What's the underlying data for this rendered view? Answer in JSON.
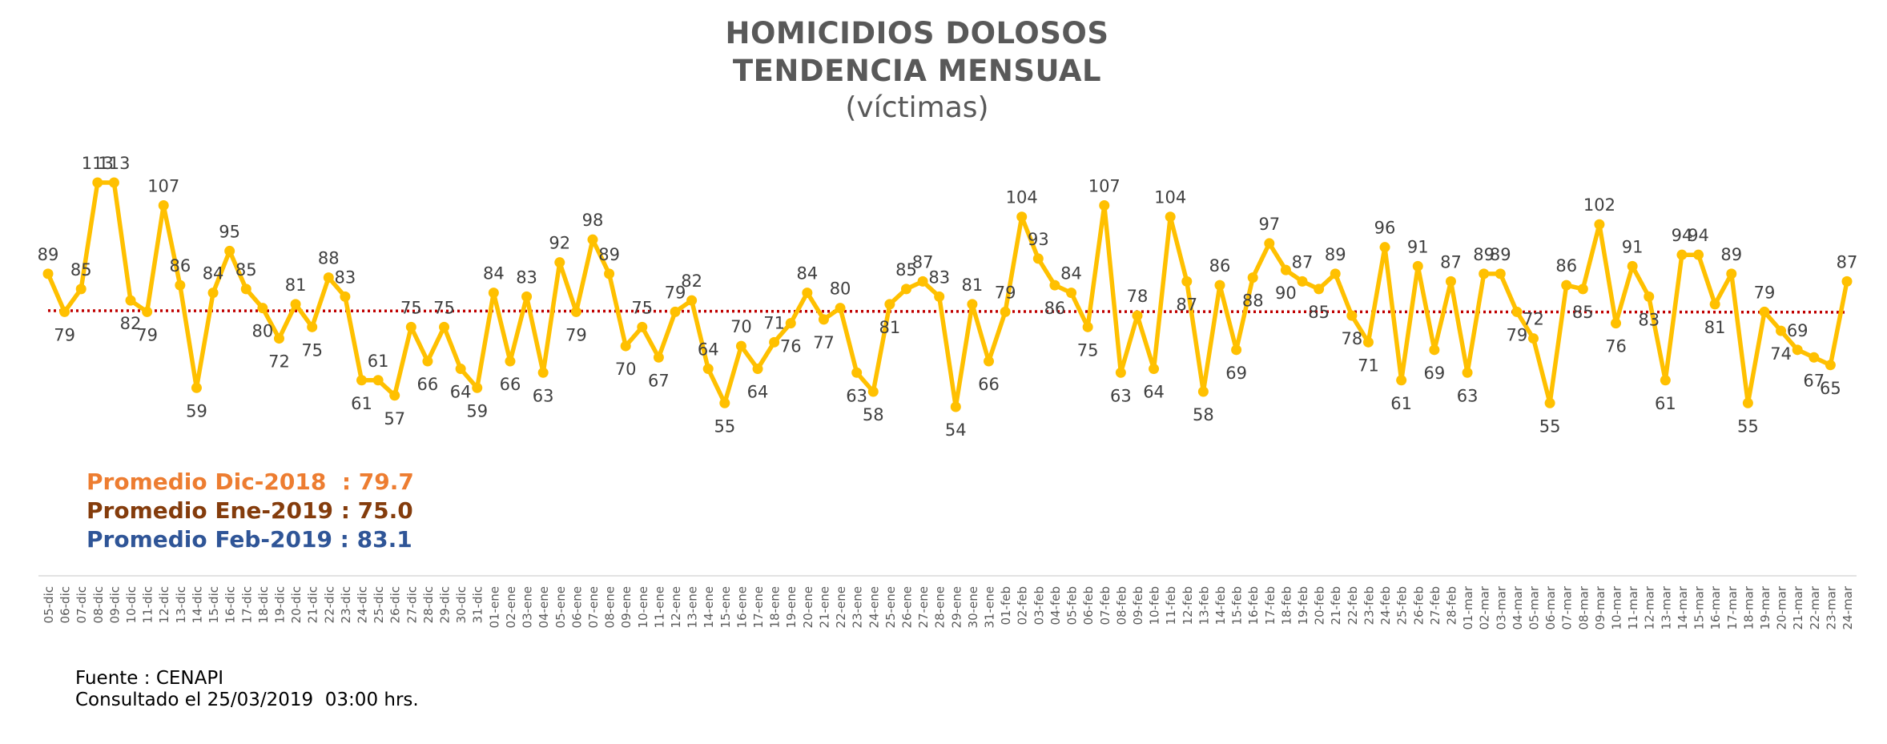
{
  "title": {
    "line1": "HOMICIDIOS DOLOSOS",
    "line2": "TENDENCIA MENSUAL",
    "line3": "(víctimas)"
  },
  "averages": [
    {
      "text": "Promedio Dic-2018  : 79.7",
      "color": "#ED7D31"
    },
    {
      "text": "Promedio Ene-2019 : 75.0",
      "color": "#843C0C"
    },
    {
      "text": "Promedio Feb-2019 : 83.1",
      "color": "#2F5597"
    }
  ],
  "source": {
    "line1": "Fuente : CENAPI",
    "line2": "Consultado el 25/03/2019  03:00 hrs."
  },
  "chart_data": {
    "type": "line",
    "series_color": "#FFC000",
    "trend_color": "#C00000",
    "trend_start": 79.3,
    "trend_end": 78.9,
    "categories": [
      "05-dic",
      "06-dic",
      "07-dic",
      "08-dic",
      "09-dic",
      "10-dic",
      "11-dic",
      "12-dic",
      "13-dic",
      "14-dic",
      "15-dic",
      "16-dic",
      "17-dic",
      "18-dic",
      "19-dic",
      "20-dic",
      "21-dic",
      "22-dic",
      "23-dic",
      "24-dic",
      "25-dic",
      "26-dic",
      "27-dic",
      "28-dic",
      "29-dic",
      "30-dic",
      "31-dic",
      "01-ene",
      "02-ene",
      "03-ene",
      "04-ene",
      "05-ene",
      "06-ene",
      "07-ene",
      "08-ene",
      "09-ene",
      "10-ene",
      "11-ene",
      "12-ene",
      "13-ene",
      "14-ene",
      "15-ene",
      "16-ene",
      "17-ene",
      "18-ene",
      "19-ene",
      "20-ene",
      "21-ene",
      "22-ene",
      "23-ene",
      "24-ene",
      "25-ene",
      "26-ene",
      "27-ene",
      "28-ene",
      "29-ene",
      "30-ene",
      "31-ene",
      "01-feb",
      "02-feb",
      "03-feb",
      "04-feb",
      "05-feb",
      "06-feb",
      "07-feb",
      "08-feb",
      "09-feb",
      "10-feb",
      "11-feb",
      "12-feb",
      "13-feb",
      "14-feb",
      "15-feb",
      "16-feb",
      "17-feb",
      "18-feb",
      "19-feb",
      "20-feb",
      "21-feb",
      "22-feb",
      "23-feb",
      "24-feb",
      "25-feb",
      "26-feb",
      "27-feb",
      "28-feb",
      "01-mar",
      "02-mar",
      "03-mar",
      "04-mar",
      "05-mar",
      "06-mar",
      "07-mar",
      "08-mar",
      "09-mar",
      "10-mar",
      "11-mar",
      "12-mar",
      "13-mar",
      "14-mar",
      "15-mar",
      "16-mar",
      "17-mar",
      "18-mar",
      "19-mar",
      "20-mar",
      "21-mar",
      "22-mar",
      "23-mar",
      "24-mar"
    ],
    "values": [
      89,
      79,
      85,
      113,
      113,
      82,
      79,
      107,
      86,
      59,
      84,
      95,
      85,
      80,
      72,
      81,
      75,
      88,
      83,
      61,
      61,
      57,
      75,
      66,
      75,
      64,
      59,
      84,
      66,
      83,
      63,
      92,
      79,
      98,
      89,
      70,
      75,
      67,
      79,
      82,
      64,
      55,
      70,
      64,
      71,
      76,
      84,
      77,
      80,
      63,
      58,
      81,
      85,
      87,
      83,
      54,
      81,
      66,
      79,
      104,
      93,
      86,
      84,
      75,
      107,
      63,
      78,
      64,
      104,
      87,
      58,
      86,
      69,
      88,
      97,
      90,
      87,
      85,
      89,
      78,
      71,
      96,
      61,
      91,
      69,
      87,
      63,
      89,
      89,
      79,
      72,
      55,
      86,
      85,
      102,
      76,
      91,
      83,
      61,
      94,
      94,
      81,
      89,
      55,
      79,
      74,
      69,
      67,
      65,
      87
    ],
    "ylim": [
      40,
      125
    ],
    "grid": false,
    "legend": "none"
  }
}
